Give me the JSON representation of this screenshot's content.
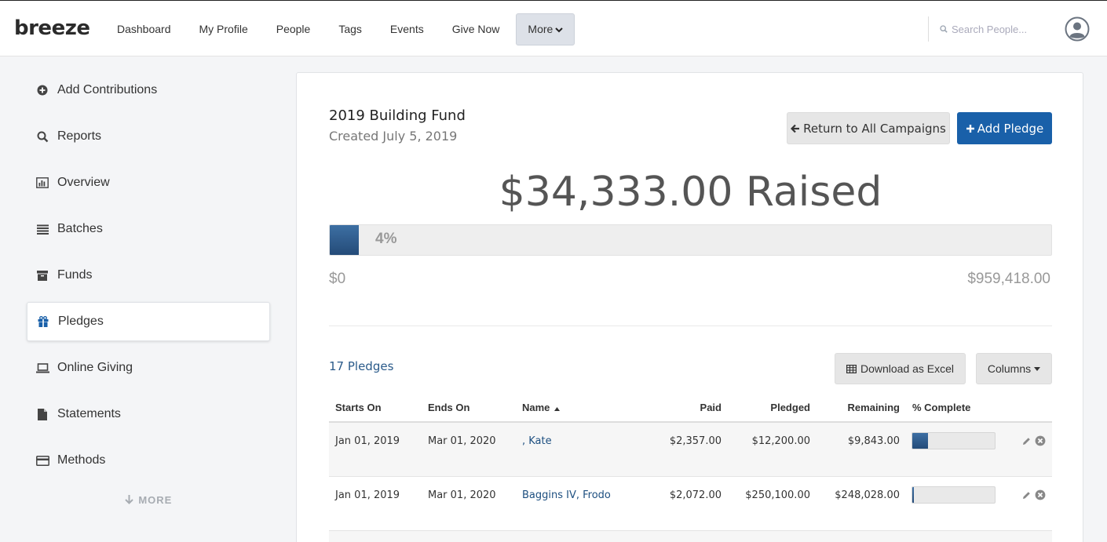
{
  "header": {
    "logo": "breeze",
    "nav": [
      "Dashboard",
      "My Profile",
      "People",
      "Tags",
      "Events",
      "Give Now"
    ],
    "more_label": "More",
    "search_placeholder": "Search People..."
  },
  "sidebar": {
    "items": [
      {
        "label": "Add Contributions",
        "icon": "plus-circle-icon"
      },
      {
        "label": "Reports",
        "icon": "search-icon"
      },
      {
        "label": "Overview",
        "icon": "bar-chart-icon"
      },
      {
        "label": "Batches",
        "icon": "list-icon"
      },
      {
        "label": "Funds",
        "icon": "archive-icon"
      },
      {
        "label": "Pledges",
        "icon": "gift-icon",
        "active": true
      },
      {
        "label": "Online Giving",
        "icon": "laptop-icon"
      },
      {
        "label": "Statements",
        "icon": "document-icon"
      },
      {
        "label": "Methods",
        "icon": "credit-card-icon"
      }
    ],
    "more_label": "MORE"
  },
  "campaign": {
    "title": "2019 Building Fund",
    "created": "Created July 5, 2019",
    "return_label": "Return to All Campaigns",
    "add_label": "Add Pledge",
    "raised_text": "$34,333.00 Raised",
    "progress_percent": 4,
    "progress_label": "4%",
    "min_label": "$0",
    "max_label": "$959,418.00"
  },
  "pledges": {
    "count_label": "17 Pledges",
    "download_label": "Download as Excel",
    "columns_label": "Columns",
    "headers": {
      "starts": "Starts On",
      "ends": "Ends On",
      "name": "Name",
      "paid": "Paid",
      "pledged": "Pledged",
      "remaining": "Remaining",
      "complete": "% Complete"
    },
    "rows": [
      {
        "starts": "Jan 01, 2019",
        "ends": "Mar 01, 2020",
        "name": ", Kate",
        "paid": "$2,357.00",
        "pledged": "$12,200.00",
        "remaining": "$9,843.00",
        "complete_fraction": 0.19
      },
      {
        "starts": "Jan 01, 2019",
        "ends": "Mar 01, 2020",
        "name": "Baggins IV, Frodo",
        "paid": "$2,072.00",
        "pledged": "$250,100.00",
        "remaining": "$248,028.00",
        "complete_fraction": 0.01
      }
    ]
  },
  "colors": {
    "brand_blue": "#1960a9",
    "progress_fill": "#2f5d8f",
    "link": "#1d4f80"
  }
}
